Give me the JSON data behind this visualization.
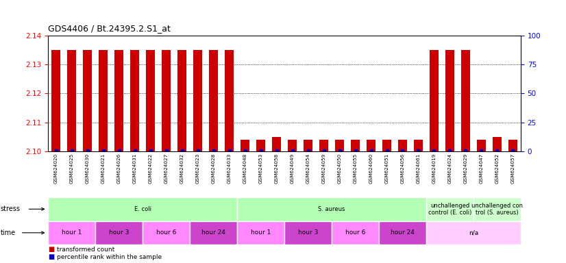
{
  "title": "GDS4406 / Bt.24395.2.S1_at",
  "samples": [
    "GSM624020",
    "GSM624025",
    "GSM624030",
    "GSM624021",
    "GSM624026",
    "GSM624031",
    "GSM624022",
    "GSM624027",
    "GSM624032",
    "GSM624023",
    "GSM624028",
    "GSM624033",
    "GSM624048",
    "GSM624053",
    "GSM624058",
    "GSM624049",
    "GSM624054",
    "GSM624059",
    "GSM624050",
    "GSM624055",
    "GSM624060",
    "GSM624051",
    "GSM624056",
    "GSM624061",
    "GSM624019",
    "GSM624024",
    "GSM624029",
    "GSM624047",
    "GSM624052",
    "GSM624057"
  ],
  "red_values": [
    2.135,
    2.135,
    2.135,
    2.135,
    2.135,
    2.135,
    2.135,
    2.135,
    2.135,
    2.135,
    2.135,
    2.135,
    2.104,
    2.104,
    2.105,
    2.104,
    2.104,
    2.104,
    2.104,
    2.104,
    2.104,
    2.104,
    2.104,
    2.104,
    2.135,
    2.135,
    2.135,
    2.104,
    2.105,
    2.104
  ],
  "ylim_left": [
    2.1,
    2.14
  ],
  "ylim_right": [
    0,
    100
  ],
  "yticks_left": [
    2.1,
    2.11,
    2.12,
    2.13,
    2.14
  ],
  "yticks_right": [
    0,
    25,
    50,
    75,
    100
  ],
  "bar_color": "#cc0000",
  "dot_color": "#0000cc",
  "stress_groups": [
    {
      "label": "E. coli",
      "start": 0,
      "end": 11,
      "color": "#b3ffb3"
    },
    {
      "label": "S. aureus",
      "start": 12,
      "end": 23,
      "color": "#b3ffb3"
    },
    {
      "label": "unchallenged\ncontrol (E. coli)",
      "start": 24,
      "end": 26,
      "color": "#ccffcc"
    },
    {
      "label": "unchallenged con\ntrol (S. aureus)",
      "start": 27,
      "end": 29,
      "color": "#ccffcc"
    }
  ],
  "time_groups": [
    {
      "label": "hour 1",
      "start": 0,
      "end": 2,
      "color": "#ff88ff"
    },
    {
      "label": "hour 3",
      "start": 3,
      "end": 5,
      "color": "#cc44cc"
    },
    {
      "label": "hour 6",
      "start": 6,
      "end": 8,
      "color": "#ff88ff"
    },
    {
      "label": "hour 24",
      "start": 9,
      "end": 11,
      "color": "#cc44cc"
    },
    {
      "label": "hour 1",
      "start": 12,
      "end": 14,
      "color": "#ff88ff"
    },
    {
      "label": "hour 3",
      "start": 15,
      "end": 17,
      "color": "#cc44cc"
    },
    {
      "label": "hour 6",
      "start": 18,
      "end": 20,
      "color": "#ff88ff"
    },
    {
      "label": "hour 24",
      "start": 21,
      "end": 23,
      "color": "#cc44cc"
    },
    {
      "label": "n/a",
      "start": 24,
      "end": 29,
      "color": "#ffccff"
    }
  ],
  "tick_bg_color": "#cccccc"
}
